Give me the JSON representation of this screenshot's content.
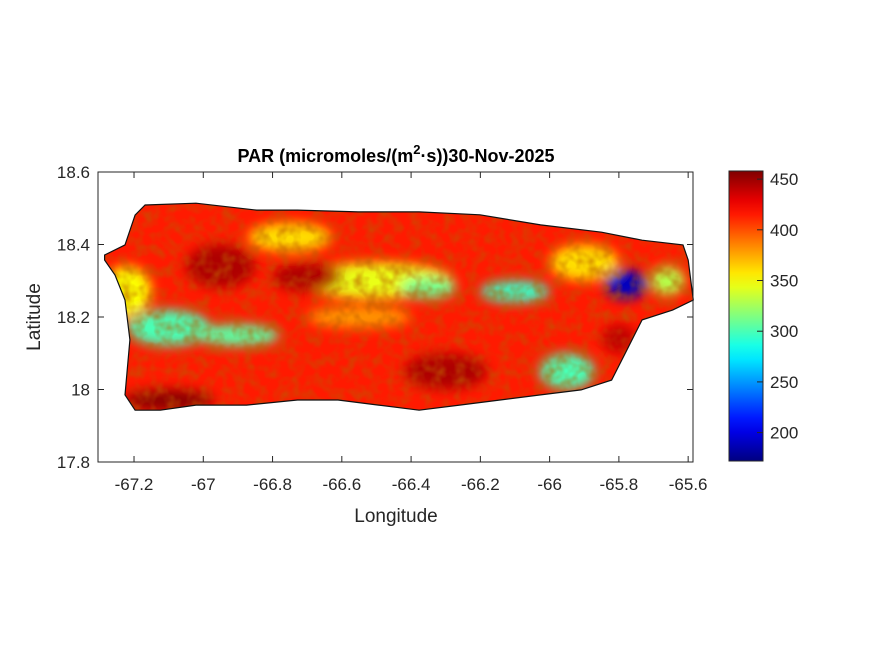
{
  "chart_data": {
    "type": "heatmap",
    "title": "PAR (micromoles/(m",
    "title_sup": "2",
    "title_rest": "·s))30-Nov-2025",
    "xlabel": "Longitude",
    "ylabel": "Latitude",
    "xlim": [
      -67.304,
      -65.586
    ],
    "ylim": [
      17.8,
      18.6
    ],
    "xticks": [
      -67.2,
      -67,
      -66.8,
      -66.6,
      -66.4,
      -66.2,
      -66,
      -65.8,
      -65.6
    ],
    "xtick_labels": [
      "-67.2",
      "-67",
      "-66.8",
      "-66.6",
      "-66.4",
      "-66.2",
      "-66",
      "-65.8",
      "-65.6"
    ],
    "yticks": [
      17.8,
      18,
      18.2,
      18.4,
      18.6
    ],
    "ytick_labels": [
      "17.8",
      "18",
      "18.2",
      "18.4",
      "18.6"
    ],
    "colormap": "jet",
    "clim": [
      172,
      458
    ],
    "colorbar_ticks": [
      200,
      250,
      300,
      350,
      400,
      450
    ],
    "colorbar_labels": [
      "200",
      "250",
      "300",
      "350",
      "400",
      "450"
    ],
    "base_value": 415,
    "region_outline": [
      [
        -67.285,
        18.371
      ],
      [
        -67.226,
        18.399
      ],
      [
        -67.197,
        18.481
      ],
      [
        -67.168,
        18.509
      ],
      [
        -67.021,
        18.514
      ],
      [
        -66.846,
        18.495
      ],
      [
        -66.728,
        18.495
      ],
      [
        -66.553,
        18.49
      ],
      [
        -66.377,
        18.49
      ],
      [
        -66.201,
        18.482
      ],
      [
        -66.026,
        18.454
      ],
      [
        -65.85,
        18.434
      ],
      [
        -65.733,
        18.412
      ],
      [
        -65.615,
        18.399
      ],
      [
        -65.6,
        18.357
      ],
      [
        -65.585,
        18.247
      ],
      [
        -65.645,
        18.219
      ],
      [
        -65.733,
        18.192
      ],
      [
        -65.777,
        18.109
      ],
      [
        -65.821,
        18.026
      ],
      [
        -65.909,
        17.999
      ],
      [
        -66.026,
        17.985
      ],
      [
        -66.143,
        17.971
      ],
      [
        -66.26,
        17.957
      ],
      [
        -66.377,
        17.943
      ],
      [
        -66.494,
        17.957
      ],
      [
        -66.611,
        17.971
      ],
      [
        -66.728,
        17.971
      ],
      [
        -66.875,
        17.957
      ],
      [
        -67.021,
        17.957
      ],
      [
        -67.124,
        17.943
      ],
      [
        -67.197,
        17.943
      ],
      [
        -67.226,
        17.985
      ],
      [
        -67.212,
        18.137
      ],
      [
        -67.226,
        18.247
      ],
      [
        -67.255,
        18.316
      ],
      [
        -67.285,
        18.357
      ]
    ],
    "field_samples": [
      {
        "lon": -66.5,
        "lat": 18.3,
        "value": 345,
        "rlon": 0.22,
        "rlat": 0.05
      },
      {
        "lon": -66.75,
        "lat": 18.42,
        "value": 360,
        "rlon": 0.12,
        "rlat": 0.04
      },
      {
        "lon": -67.1,
        "lat": 18.17,
        "value": 300,
        "rlon": 0.12,
        "rlat": 0.05
      },
      {
        "lon": -66.9,
        "lat": 18.15,
        "value": 305,
        "rlon": 0.12,
        "rlat": 0.03
      },
      {
        "lon": -67.22,
        "lat": 18.27,
        "value": 350,
        "rlon": 0.07,
        "rlat": 0.07
      },
      {
        "lon": -66.35,
        "lat": 18.28,
        "value": 310,
        "rlon": 0.08,
        "rlat": 0.03
      },
      {
        "lon": -66.1,
        "lat": 18.27,
        "value": 295,
        "rlon": 0.1,
        "rlat": 0.03
      },
      {
        "lon": -65.95,
        "lat": 18.05,
        "value": 300,
        "rlon": 0.08,
        "rlat": 0.05
      },
      {
        "lon": -65.9,
        "lat": 18.35,
        "value": 360,
        "rlon": 0.1,
        "rlat": 0.05
      },
      {
        "lon": -65.78,
        "lat": 18.29,
        "value": 190,
        "rlon": 0.06,
        "rlat": 0.04
      },
      {
        "lon": -65.66,
        "lat": 18.3,
        "value": 330,
        "rlon": 0.05,
        "rlat": 0.04
      },
      {
        "lon": -67.1,
        "lat": 17.97,
        "value": 455,
        "rlon": 0.13,
        "rlat": 0.03
      },
      {
        "lon": -66.95,
        "lat": 18.34,
        "value": 445,
        "rlon": 0.1,
        "rlat": 0.06
      },
      {
        "lon": -66.7,
        "lat": 18.31,
        "value": 445,
        "rlon": 0.1,
        "rlat": 0.04
      },
      {
        "lon": -66.3,
        "lat": 18.05,
        "value": 445,
        "rlon": 0.12,
        "rlat": 0.05
      },
      {
        "lon": -65.8,
        "lat": 18.14,
        "value": 440,
        "rlon": 0.05,
        "rlat": 0.04
      },
      {
        "lon": -66.55,
        "lat": 18.2,
        "value": 380,
        "rlon": 0.15,
        "rlat": 0.03
      }
    ]
  }
}
